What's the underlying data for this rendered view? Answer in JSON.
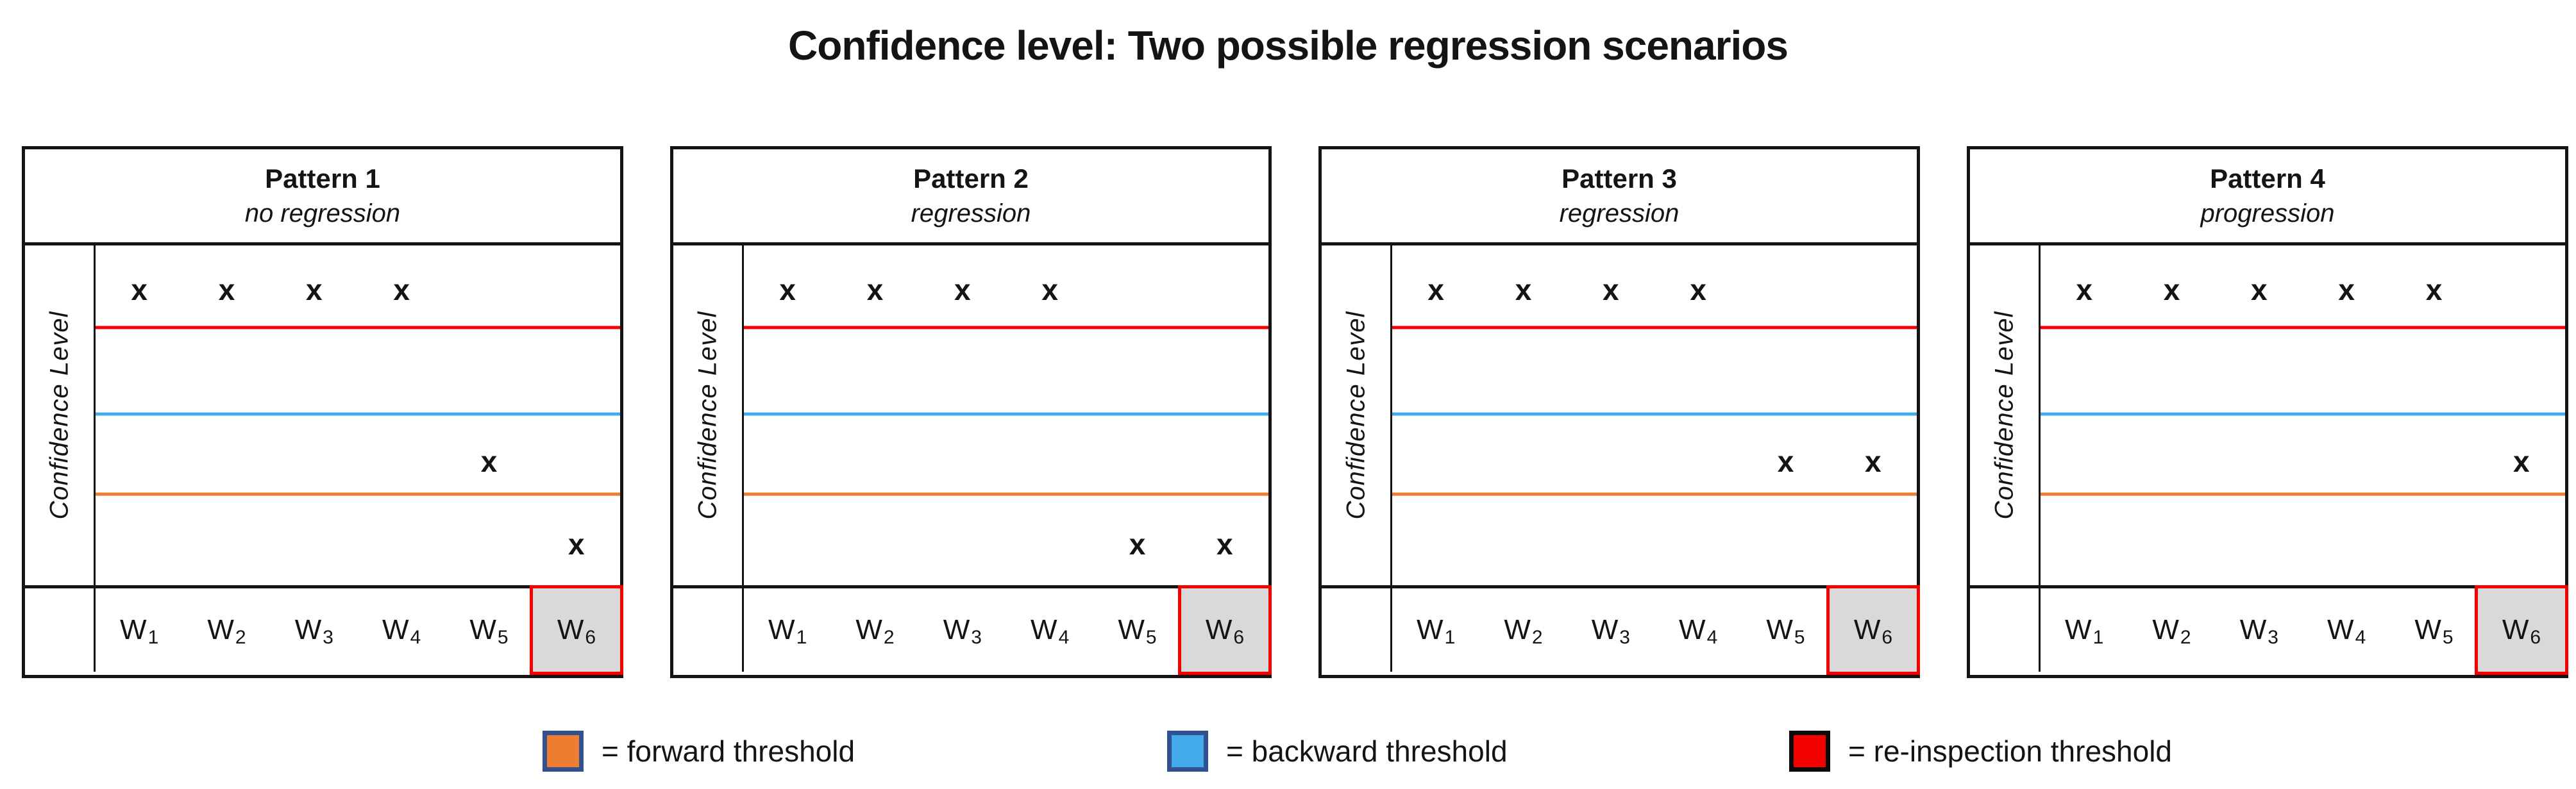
{
  "title": "Confidence level: Two possible regression scenarios",
  "ylabel": "Confidence Level",
  "marker_glyph": "x",
  "weeks": [
    {
      "base": "W",
      "sub": "1"
    },
    {
      "base": "W",
      "sub": "2"
    },
    {
      "base": "W",
      "sub": "3"
    },
    {
      "base": "W",
      "sub": "4"
    },
    {
      "base": "W",
      "sub": "5"
    },
    {
      "base": "W",
      "sub": "6"
    }
  ],
  "highlighted_week": "W6",
  "highlight_cell": {
    "fill": "#d9d9d9",
    "border": "#f40000"
  },
  "thresholds": {
    "reinspection": "#f40000",
    "backward": "#41abeb",
    "forward": "#ed7d31"
  },
  "panels": [
    {
      "title": "Pattern 1",
      "subtitle": "no regression",
      "markers": [
        {
          "week": 1,
          "band": "above_red"
        },
        {
          "week": 2,
          "band": "above_red"
        },
        {
          "week": 3,
          "band": "above_red"
        },
        {
          "week": 4,
          "band": "above_red"
        },
        {
          "week": 5,
          "band": "below_blue"
        },
        {
          "week": 6,
          "band": "below_orange"
        }
      ]
    },
    {
      "title": "Pattern 2",
      "subtitle": "regression",
      "markers": [
        {
          "week": 1,
          "band": "above_red"
        },
        {
          "week": 2,
          "band": "above_red"
        },
        {
          "week": 3,
          "band": "above_red"
        },
        {
          "week": 4,
          "band": "above_red"
        },
        {
          "week": 5,
          "band": "below_orange"
        },
        {
          "week": 6,
          "band": "below_orange"
        }
      ]
    },
    {
      "title": "Pattern 3",
      "subtitle": "regression",
      "markers": [
        {
          "week": 1,
          "band": "above_red"
        },
        {
          "week": 2,
          "band": "above_red"
        },
        {
          "week": 3,
          "band": "above_red"
        },
        {
          "week": 4,
          "band": "above_red"
        },
        {
          "week": 5,
          "band": "below_blue"
        },
        {
          "week": 6,
          "band": "below_blue"
        }
      ]
    },
    {
      "title": "Pattern 4",
      "subtitle": "progression",
      "markers": [
        {
          "week": 1,
          "band": "above_red"
        },
        {
          "week": 2,
          "band": "above_red"
        },
        {
          "week": 3,
          "band": "above_red"
        },
        {
          "week": 4,
          "band": "above_red"
        },
        {
          "week": 5,
          "band": "above_red"
        },
        {
          "week": 6,
          "band": "below_blue"
        }
      ]
    }
  ],
  "legend": [
    {
      "label": "= forward threshold",
      "swatch_color": "#ed7d31",
      "swatch_border": "#31518f"
    },
    {
      "label": "= backward threshold",
      "swatch_color": "#41abeb",
      "swatch_border": "#31518f"
    },
    {
      "label": "= re-inspection threshold",
      "swatch_color": "#f40000",
      "swatch_border": "#0a0a0a"
    }
  ]
}
